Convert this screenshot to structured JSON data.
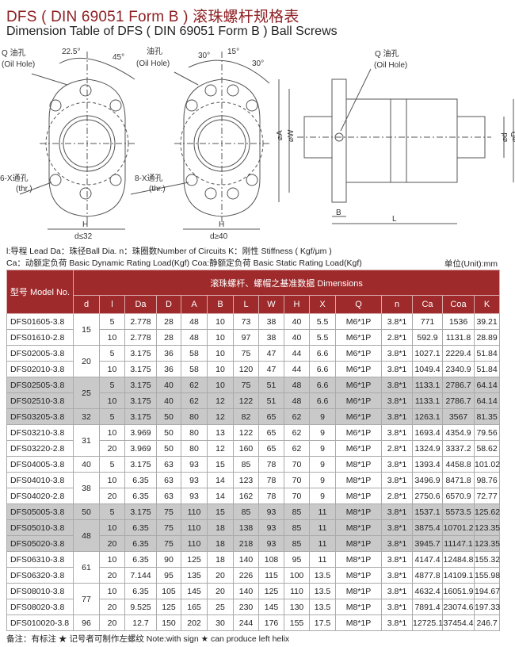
{
  "title_cn": "DFS ( DIN 69051 Form B ) 滚珠螺杆规格表",
  "title_en": "Dimension Table of DFS ( DIN 69051 Form B ) Ball Screws",
  "drawing": {
    "left": {
      "oil_label": "Q 油孔",
      "oil_label_en": "(Oil Hole)",
      "angle1": "22.5°",
      "angle2": "45°",
      "holes": "6-X通孔",
      "holes_en": "(thr.)",
      "dim_h": "H",
      "cond": "d≤32"
    },
    "middle": {
      "oil_label": "油孔",
      "oil_label_en": "(Oil Hole)",
      "angle1": "30°",
      "angle2": "15°",
      "angle3": "30°",
      "holes": "8-X通孔",
      "holes_en": "(thr.)",
      "dim_h": "H",
      "cond": "d≥40"
    },
    "side": {
      "oil_label": "Q 油孔",
      "oil_label_en": "(Oil Hole)",
      "dim_a": "⌀A",
      "dim_w": "⌀W",
      "dim_d": "⌀d",
      "dim_D": "⌀D",
      "dim_b": "B",
      "dim_l": "L"
    }
  },
  "legend": {
    "line1": "l:导程  Lead  Da：珠径Ball Dia.   n：珠圈数Number of Circuits   K：刚性  Stiffness ( Kgf/μm )",
    "line2": "Ca：动额定负荷  Basic Dynamic Rating Load(Kgf)   Coa:静额定负荷  Basic Static Rating Load(Kgf)",
    "unit": "单位(Unit):mm"
  },
  "table": {
    "model_header": "型号 Model No.",
    "group_header": "滚珠螺杆、螺帽之基准数据  Dimensions",
    "columns": [
      "d",
      "l",
      "Da",
      "D",
      "A",
      "B",
      "L",
      "W",
      "H",
      "X",
      "Q",
      "n",
      "Ca",
      "Coa",
      "K"
    ],
    "groups": [
      {
        "d": "15",
        "gray": false,
        "rows": [
          [
            "DFS01605-3.8",
            "5",
            "2.778",
            "28",
            "48",
            "10",
            "73",
            "38",
            "40",
            "5.5",
            "M6*1P",
            "3.8*1",
            "771",
            "1536",
            "39.21"
          ],
          [
            "DFS01610-2.8",
            "10",
            "2.778",
            "28",
            "48",
            "10",
            "97",
            "38",
            "40",
            "5.5",
            "M6*1P",
            "2.8*1",
            "592.9",
            "1131.8",
            "28.89"
          ]
        ]
      },
      {
        "d": "20",
        "gray": false,
        "rows": [
          [
            "DFS02005-3.8",
            "5",
            "3.175",
            "36",
            "58",
            "10",
            "75",
            "47",
            "44",
            "6.6",
            "M6*1P",
            "3.8*1",
            "1027.1",
            "2229.4",
            "51.84"
          ],
          [
            "DFS02010-3.8",
            "10",
            "3.175",
            "36",
            "58",
            "10",
            "120",
            "47",
            "44",
            "6.6",
            "M6*1P",
            "3.8*1",
            "1049.4",
            "2340.9",
            "51.84"
          ]
        ]
      },
      {
        "d": "25",
        "gray": true,
        "rows": [
          [
            "DFS02505-3.8",
            "5",
            "3.175",
            "40",
            "62",
            "10",
            "75",
            "51",
            "48",
            "6.6",
            "M6*1P",
            "3.8*1",
            "1133.1",
            "2786.7",
            "64.14"
          ],
          [
            "DFS02510-3.8",
            "10",
            "3.175",
            "40",
            "62",
            "12",
            "122",
            "51",
            "48",
            "6.6",
            "M6*1P",
            "3.8*1",
            "1133.1",
            "2786.7",
            "64.14"
          ]
        ]
      },
      {
        "d": "32",
        "gray": true,
        "rows": [
          [
            "DFS03205-3.8",
            "5",
            "3.175",
            "50",
            "80",
            "12",
            "82",
            "65",
            "62",
            "9",
            "M6*1P",
            "3.8*1",
            "1263.1",
            "3567",
            "81.35"
          ]
        ]
      },
      {
        "d": "31",
        "gray": false,
        "rows": [
          [
            "DFS03210-3.8",
            "10",
            "3.969",
            "50",
            "80",
            "13",
            "122",
            "65",
            "62",
            "9",
            "M6*1P",
            "3.8*1",
            "1693.4",
            "4354.9",
            "79.56"
          ],
          [
            "DFS03220-2.8",
            "20",
            "3.969",
            "50",
            "80",
            "12",
            "160",
            "65",
            "62",
            "9",
            "M6*1P",
            "2.8*1",
            "1324.9",
            "3337.2",
            "58.62"
          ]
        ]
      },
      {
        "d": "40",
        "gray": false,
        "rows": [
          [
            "DFS04005-3.8",
            "5",
            "3.175",
            "63",
            "93",
            "15",
            "85",
            "78",
            "70",
            "9",
            "M8*1P",
            "3.8*1",
            "1393.4",
            "4458.8",
            "101.02"
          ]
        ]
      },
      {
        "d": "38",
        "gray": false,
        "rows": [
          [
            "DFS04010-3.8",
            "10",
            "6.35",
            "63",
            "93",
            "14",
            "123",
            "78",
            "70",
            "9",
            "M8*1P",
            "3.8*1",
            "3496.9",
            "8471.8",
            "98.76"
          ],
          [
            "DFS04020-2.8",
            "20",
            "6.35",
            "63",
            "93",
            "14",
            "162",
            "78",
            "70",
            "9",
            "M8*1P",
            "2.8*1",
            "2750.6",
            "6570.9",
            "72.77"
          ]
        ]
      },
      {
        "d": "50",
        "gray": true,
        "rows": [
          [
            "DFS05005-3.8",
            "5",
            "3.175",
            "75",
            "110",
            "15",
            "85",
            "93",
            "85",
            "11",
            "M8*1P",
            "3.8*1",
            "1537.1",
            "5573.5",
            "125.62"
          ]
        ]
      },
      {
        "d": "48",
        "gray": true,
        "rows": [
          [
            "DFS05010-3.8",
            "10",
            "6.35",
            "75",
            "110",
            "18",
            "138",
            "93",
            "85",
            "11",
            "M8*1P",
            "3.8*1",
            "3875.4",
            "10701.2",
            "123.35"
          ],
          [
            "DFS05020-3.8",
            "20",
            "6.35",
            "75",
            "110",
            "18",
            "218",
            "93",
            "85",
            "11",
            "M8*1P",
            "3.8*1",
            "3945.7",
            "11147.1",
            "123.35"
          ]
        ]
      },
      {
        "d": "61",
        "gray": false,
        "rows": [
          [
            "DFS06310-3.8",
            "10",
            "6.35",
            "90",
            "125",
            "18",
            "140",
            "108",
            "95",
            "11",
            "M8*1P",
            "3.8*1",
            "4147.4",
            "12484.8",
            "155.32"
          ],
          [
            "DFS06320-3.8",
            "20",
            "7.144",
            "95",
            "135",
            "20",
            "226",
            "115",
            "100",
            "13.5",
            "M8*1P",
            "3.8*1",
            "4877.8",
            "14109.1",
            "155.98"
          ]
        ]
      },
      {
        "d": "77",
        "gray": false,
        "rows": [
          [
            "DFS08010-3.8",
            "10",
            "6.35",
            "105",
            "145",
            "20",
            "140",
            "125",
            "110",
            "13.5",
            "M8*1P",
            "3.8*1",
            "4632.4",
            "16051.9",
            "194.67"
          ],
          [
            "DFS08020-3.8",
            "20",
            "9.525",
            "125",
            "165",
            "25",
            "230",
            "145",
            "130",
            "13.5",
            "M8*1P",
            "3.8*1",
            "7891.4",
            "23074.6",
            "197.33"
          ]
        ]
      },
      {
        "d": "96",
        "gray": false,
        "rows": [
          [
            "DFS010020-3.8",
            "20",
            "12.7",
            "150",
            "202",
            "30",
            "244",
            "176",
            "155",
            "17.5",
            "M8*1P",
            "3.8*1",
            "12725.1",
            "37454.4",
            "246.7"
          ]
        ]
      }
    ]
  },
  "note": "备注：有标注 ★ 记号者可制作左螺纹   Note:with sign ★ can produce left helix",
  "colors": {
    "header": "#9e2a2b",
    "title": "#8e1f22",
    "gray_row": "#c9c9c9"
  }
}
